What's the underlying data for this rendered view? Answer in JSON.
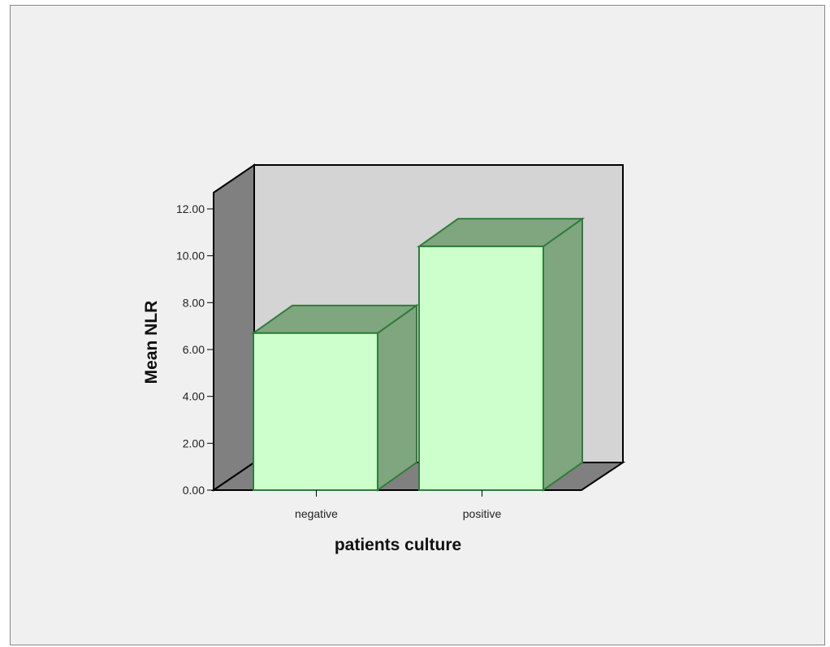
{
  "chart_data": {
    "type": "bar",
    "style": "3d",
    "categories": [
      "negative",
      "positive"
    ],
    "values": [
      6.7,
      10.4
    ],
    "title": "",
    "xlabel": "patients culture",
    "ylabel": "Mean NLR",
    "ylim": [
      0,
      12
    ],
    "yticks": [
      "0.00",
      "2.00",
      "4.00",
      "6.00",
      "8.00",
      "10.00",
      "12.00"
    ],
    "grid": false,
    "legend": "none",
    "colors": {
      "bar_front": "#ccffcc",
      "bar_side": "#7fa67f",
      "bar_edge": "#2e7d3a",
      "back_wall": "#d4d4d4",
      "side_wall": "#808080",
      "floor": "#808080",
      "frame_background": "#f0f0f0"
    }
  }
}
